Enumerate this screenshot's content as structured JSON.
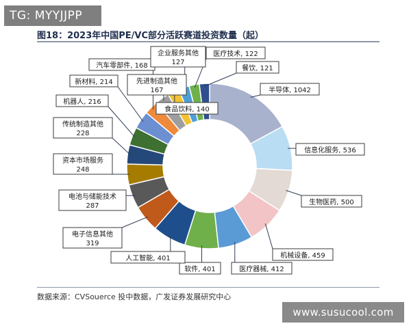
{
  "watermark_top": "TG: MYYJJPP",
  "watermark_bottom": "www.susucool.com",
  "figure_title": "图18：2023年中国PE/VC部分活跃赛道投资数量（起）",
  "source_note": "数据来源：CVSouerce 投中数据，广发证券发展研究中心",
  "chart_data": {
    "type": "pie",
    "donut": true,
    "title": "图18：2023年中国PE/VC部分活跃赛道投资数量（起）",
    "slices": [
      {
        "name": "半导体",
        "value": 1042,
        "color": "#a9b2cc"
      },
      {
        "name": "信息化服务",
        "value": 536,
        "color": "#b9ddf2"
      },
      {
        "name": "生物医药",
        "value": 500,
        "color": "#e3dad6"
      },
      {
        "name": "机械设备",
        "value": 459,
        "color": "#f2c4c6"
      },
      {
        "name": "医疗器械",
        "value": 412,
        "color": "#5b9bd5"
      },
      {
        "name": "软件",
        "value": 401,
        "color": "#70b04a"
      },
      {
        "name": "人工智能",
        "value": 401,
        "color": "#1f4e8c"
      },
      {
        "name": "电子信息其他",
        "value": 319,
        "color": "#c05a1b"
      },
      {
        "name": "电池与储能技术",
        "value": 287,
        "color": "#595959"
      },
      {
        "name": "资本市场服务",
        "value": 248,
        "color": "#a67c00"
      },
      {
        "name": "传统制造其他",
        "value": 228,
        "color": "#24487a"
      },
      {
        "name": "机器人",
        "value": 216,
        "color": "#3e7031"
      },
      {
        "name": "新材料",
        "value": 214,
        "color": "#6c8fd1"
      },
      {
        "name": "汽车零部件",
        "value": 168,
        "color": "#ee8a3c"
      },
      {
        "name": "先进制造其他",
        "value": 167,
        "color": "#9e9e9e"
      },
      {
        "name": "食品饮料",
        "value": 140,
        "color": "#f2c230"
      },
      {
        "name": "企业服务其他",
        "value": 127,
        "color": "#4f9fd6"
      },
      {
        "name": "医疗技术",
        "value": 122,
        "color": "#6fb04a"
      },
      {
        "name": "餐饮",
        "value": 121,
        "color": "#2f4f8f"
      }
    ]
  }
}
